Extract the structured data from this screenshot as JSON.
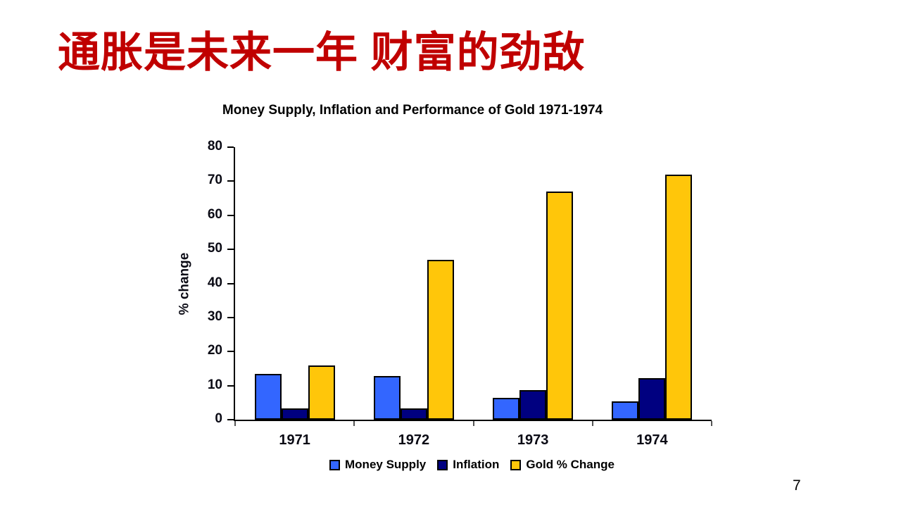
{
  "slide": {
    "title": "通胀是未来一年 财富的劲敌",
    "title_color": "#C00000",
    "page_number": "7"
  },
  "chart_data": {
    "type": "bar",
    "title": "Money Supply, Inflation and Performance of Gold 1971-1974",
    "ylabel": "% change",
    "xlabel": "",
    "categories": [
      "1971",
      "1972",
      "1973",
      "1974"
    ],
    "series": [
      {
        "name": "Money Supply",
        "color": "#3366FF",
        "values": [
          13.4,
          12.9,
          6.5,
          5.4
        ]
      },
      {
        "name": "Inflation",
        "color": "#000080",
        "values": [
          3.3,
          3.4,
          8.7,
          12.3
        ]
      },
      {
        "name": "Gold % Change",
        "color": "#FFC60A",
        "values": [
          16,
          47,
          67,
          72
        ]
      }
    ],
    "ylim": [
      0,
      80
    ],
    "ytick_step": 10,
    "grid": false,
    "legend_position": "bottom",
    "bar_border_color": "#000000"
  }
}
